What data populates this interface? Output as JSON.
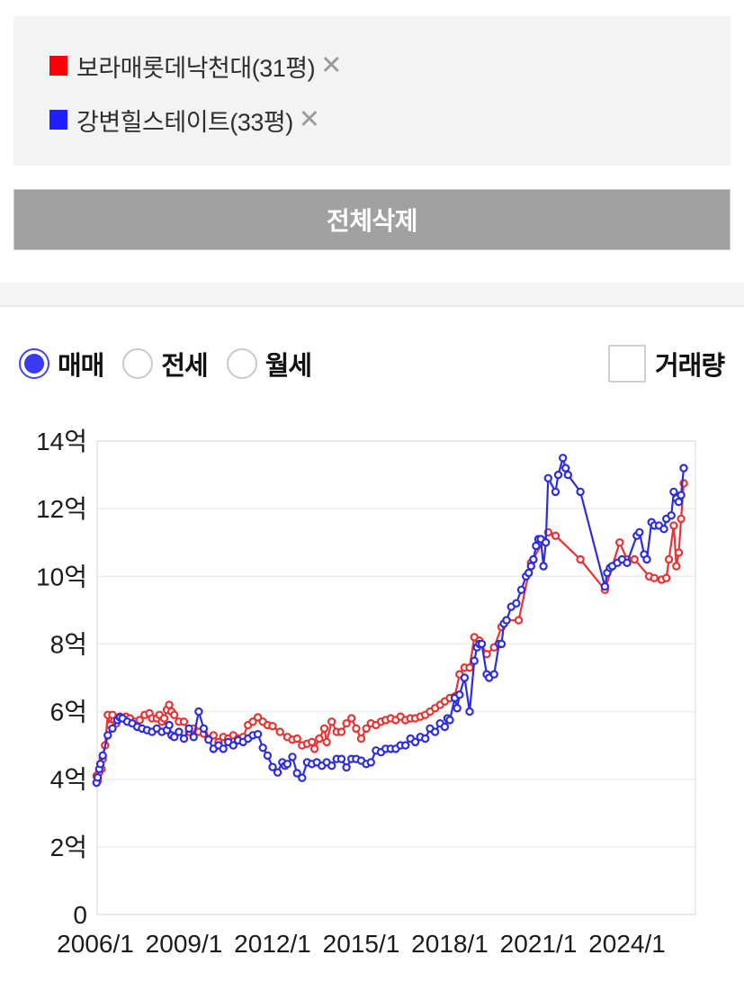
{
  "legend": {
    "items": [
      {
        "label": "보라매롯데낙천대(31평)",
        "color": "#fb0009",
        "close_label": "✕"
      },
      {
        "label": "강변힐스테이트(33평)",
        "color": "#1f1fff",
        "close_label": "✕"
      }
    ]
  },
  "delete_all_button": {
    "label": "전체삭제"
  },
  "controls": {
    "radios": [
      {
        "label": "매매",
        "selected": true
      },
      {
        "label": "전세",
        "selected": false
      },
      {
        "label": "월세",
        "selected": false
      }
    ],
    "checkbox": {
      "label": "거래량",
      "checked": false
    }
  },
  "chart_data": {
    "type": "line",
    "title": "",
    "xlabel": "",
    "ylabel": "",
    "y_unit": "억",
    "ylim": [
      0,
      14
    ],
    "y_tick_step": 2,
    "y_ticks": [
      "14억",
      "12억",
      "10억",
      "8억",
      "6억",
      "4억",
      "2억",
      "0"
    ],
    "x_ticks": [
      "2006/1",
      "2009/1",
      "2012/1",
      "2015/1",
      "2018/1",
      "2021/1",
      "2024/1"
    ],
    "grid": true,
    "legend_position": "top-panel",
    "series": [
      {
        "name": "보라매롯데낙천대(31평)",
        "color": "#e93333",
        "points": [
          [
            2006.04,
            4.1
          ],
          [
            2006.08,
            3.95
          ],
          [
            2006.13,
            4.2
          ],
          [
            2006.17,
            4.45
          ],
          [
            2006.21,
            4.3
          ],
          [
            2006.25,
            4.6
          ],
          [
            2006.33,
            5.0
          ],
          [
            2006.42,
            5.9
          ],
          [
            2006.5,
            5.6
          ],
          [
            2006.58,
            5.9
          ],
          [
            2006.71,
            5.65
          ],
          [
            2006.83,
            5.85
          ],
          [
            2006.92,
            5.8
          ],
          [
            2007.04,
            5.85
          ],
          [
            2007.17,
            5.8
          ],
          [
            2007.33,
            5.7
          ],
          [
            2007.5,
            5.75
          ],
          [
            2007.67,
            5.9
          ],
          [
            2007.83,
            5.95
          ],
          [
            2007.92,
            5.8
          ],
          [
            2008.08,
            5.8
          ],
          [
            2008.17,
            5.9
          ],
          [
            2008.25,
            5.7
          ],
          [
            2008.33,
            5.8
          ],
          [
            2008.42,
            6.05
          ],
          [
            2008.5,
            6.2
          ],
          [
            2008.58,
            6.0
          ],
          [
            2008.67,
            5.9
          ],
          [
            2008.83,
            5.7
          ],
          [
            2009.0,
            5.7
          ],
          [
            2009.17,
            5.4
          ],
          [
            2009.33,
            5.5
          ],
          [
            2009.5,
            5.4
          ],
          [
            2009.67,
            5.35
          ],
          [
            2009.83,
            5.2
          ],
          [
            2010.0,
            5.3
          ],
          [
            2010.17,
            5.1
          ],
          [
            2010.33,
            5.25
          ],
          [
            2010.5,
            5.2
          ],
          [
            2010.67,
            5.3
          ],
          [
            2010.83,
            5.2
          ],
          [
            2011.0,
            5.25
          ],
          [
            2011.17,
            5.6
          ],
          [
            2011.33,
            5.7
          ],
          [
            2011.5,
            5.83
          ],
          [
            2011.67,
            5.7
          ],
          [
            2011.83,
            5.6
          ],
          [
            2012.0,
            5.57
          ],
          [
            2012.25,
            5.4
          ],
          [
            2012.5,
            5.25
          ],
          [
            2012.67,
            5.17
          ],
          [
            2012.83,
            5.2
          ],
          [
            2013.0,
            5.0
          ],
          [
            2013.17,
            5.05
          ],
          [
            2013.33,
            5.1
          ],
          [
            2013.42,
            4.9
          ],
          [
            2013.58,
            5.2
          ],
          [
            2013.75,
            5.5
          ],
          [
            2013.83,
            5.1
          ],
          [
            2014.0,
            5.7
          ],
          [
            2014.17,
            5.4
          ],
          [
            2014.33,
            5.4
          ],
          [
            2014.5,
            5.65
          ],
          [
            2014.67,
            5.8
          ],
          [
            2014.83,
            5.5
          ],
          [
            2015.0,
            5.2
          ],
          [
            2015.17,
            5.5
          ],
          [
            2015.33,
            5.65
          ],
          [
            2015.5,
            5.6
          ],
          [
            2015.67,
            5.7
          ],
          [
            2015.83,
            5.75
          ],
          [
            2016.0,
            5.8
          ],
          [
            2016.17,
            5.75
          ],
          [
            2016.33,
            5.85
          ],
          [
            2016.5,
            5.75
          ],
          [
            2016.67,
            5.8
          ],
          [
            2016.83,
            5.8
          ],
          [
            2017.0,
            5.85
          ],
          [
            2017.17,
            5.9
          ],
          [
            2017.33,
            6.0
          ],
          [
            2017.5,
            6.1
          ],
          [
            2017.67,
            6.2
          ],
          [
            2017.83,
            6.3
          ],
          [
            2018.0,
            6.4
          ],
          [
            2018.17,
            6.45
          ],
          [
            2018.33,
            7.1
          ],
          [
            2018.5,
            7.3
          ],
          [
            2018.67,
            7.3
          ],
          [
            2018.83,
            8.2
          ],
          [
            2019.0,
            8.1
          ],
          [
            2019.25,
            7.7
          ],
          [
            2019.5,
            7.9
          ],
          [
            2019.75,
            8.5
          ],
          [
            2019.92,
            8.7
          ],
          [
            2020.33,
            8.7
          ],
          [
            2020.75,
            10.4
          ],
          [
            2021.33,
            11.3
          ],
          [
            2021.58,
            11.2
          ],
          [
            2022.42,
            10.5
          ],
          [
            2023.25,
            9.6
          ],
          [
            2023.75,
            11.0
          ],
          [
            2024.0,
            10.5
          ],
          [
            2024.25,
            10.5
          ],
          [
            2024.75,
            10.0
          ],
          [
            2024.92,
            9.95
          ],
          [
            2025.17,
            9.9
          ],
          [
            2025.33,
            9.95
          ],
          [
            2025.42,
            10.5
          ],
          [
            2025.58,
            11.5
          ],
          [
            2025.67,
            10.3
          ],
          [
            2025.75,
            10.7
          ],
          [
            2025.83,
            11.7
          ],
          [
            2025.92,
            12.75
          ]
        ]
      },
      {
        "name": "강변힐스테이트(33평)",
        "color": "#2d2de0",
        "points": [
          [
            2006.04,
            3.9
          ],
          [
            2006.08,
            4.05
          ],
          [
            2006.13,
            4.3
          ],
          [
            2006.17,
            4.45
          ],
          [
            2006.25,
            4.7
          ],
          [
            2006.42,
            5.3
          ],
          [
            2006.58,
            5.5
          ],
          [
            2006.75,
            5.75
          ],
          [
            2006.83,
            5.83
          ],
          [
            2006.92,
            5.8
          ],
          [
            2007.08,
            5.7
          ],
          [
            2007.25,
            5.65
          ],
          [
            2007.42,
            5.55
          ],
          [
            2007.58,
            5.5
          ],
          [
            2007.75,
            5.45
          ],
          [
            2007.92,
            5.4
          ],
          [
            2008.08,
            5.5
          ],
          [
            2008.25,
            5.4
          ],
          [
            2008.42,
            5.45
          ],
          [
            2008.5,
            5.6
          ],
          [
            2008.58,
            5.3
          ],
          [
            2008.67,
            5.25
          ],
          [
            2008.83,
            5.4
          ],
          [
            2009.0,
            5.2
          ],
          [
            2009.17,
            5.5
          ],
          [
            2009.33,
            5.25
          ],
          [
            2009.5,
            6.0
          ],
          [
            2009.67,
            5.5
          ],
          [
            2009.83,
            5.17
          ],
          [
            2010.0,
            4.9
          ],
          [
            2010.17,
            5.0
          ],
          [
            2010.33,
            4.9
          ],
          [
            2010.5,
            5.1
          ],
          [
            2010.67,
            5.0
          ],
          [
            2010.83,
            5.15
          ],
          [
            2011.0,
            5.1
          ],
          [
            2011.17,
            5.2
          ],
          [
            2011.33,
            5.3
          ],
          [
            2011.5,
            5.33
          ],
          [
            2011.67,
            4.93
          ],
          [
            2011.83,
            4.7
          ],
          [
            2012.0,
            4.36
          ],
          [
            2012.17,
            4.2
          ],
          [
            2012.33,
            4.5
          ],
          [
            2012.42,
            4.4
          ],
          [
            2012.5,
            4.45
          ],
          [
            2012.67,
            4.66
          ],
          [
            2012.83,
            4.18
          ],
          [
            2013.0,
            4.04
          ],
          [
            2013.17,
            4.5
          ],
          [
            2013.33,
            4.45
          ],
          [
            2013.5,
            4.5
          ],
          [
            2013.67,
            4.4
          ],
          [
            2013.83,
            4.5
          ],
          [
            2014.0,
            4.4
          ],
          [
            2014.17,
            4.6
          ],
          [
            2014.33,
            4.6
          ],
          [
            2014.5,
            4.35
          ],
          [
            2014.67,
            4.6
          ],
          [
            2014.83,
            4.6
          ],
          [
            2015.0,
            4.55
          ],
          [
            2015.17,
            4.45
          ],
          [
            2015.33,
            4.5
          ],
          [
            2015.5,
            4.85
          ],
          [
            2015.67,
            4.8
          ],
          [
            2015.83,
            4.9
          ],
          [
            2016.0,
            4.9
          ],
          [
            2016.17,
            4.9
          ],
          [
            2016.33,
            5.0
          ],
          [
            2016.5,
            5.0
          ],
          [
            2016.67,
            5.2
          ],
          [
            2016.83,
            5.1
          ],
          [
            2017.0,
            5.25
          ],
          [
            2017.17,
            5.2
          ],
          [
            2017.33,
            5.5
          ],
          [
            2017.5,
            5.4
          ],
          [
            2017.67,
            5.65
          ],
          [
            2017.83,
            5.55
          ],
          [
            2017.92,
            5.8
          ],
          [
            2018.0,
            5.75
          ],
          [
            2018.17,
            6.4
          ],
          [
            2018.25,
            6.1
          ],
          [
            2018.33,
            6.5
          ],
          [
            2018.5,
            7.0
          ],
          [
            2018.67,
            6.0
          ],
          [
            2018.83,
            7.5
          ],
          [
            2018.92,
            7.9
          ],
          [
            2019.0,
            8.0
          ],
          [
            2019.08,
            8.0
          ],
          [
            2019.25,
            7.1
          ],
          [
            2019.33,
            7.0
          ],
          [
            2019.5,
            7.1
          ],
          [
            2019.67,
            8.0
          ],
          [
            2019.75,
            8.0
          ],
          [
            2019.83,
            8.6
          ],
          [
            2019.92,
            8.7
          ],
          [
            2020.08,
            9.1
          ],
          [
            2020.25,
            9.2
          ],
          [
            2020.42,
            9.6
          ],
          [
            2020.58,
            10.0
          ],
          [
            2020.67,
            10.1
          ],
          [
            2020.75,
            10.3
          ],
          [
            2020.83,
            10.5
          ],
          [
            2020.92,
            10.9
          ],
          [
            2021.0,
            11.1
          ],
          [
            2021.08,
            11.1
          ],
          [
            2021.17,
            10.3
          ],
          [
            2021.25,
            11.0
          ],
          [
            2021.33,
            12.9
          ],
          [
            2021.58,
            12.5
          ],
          [
            2021.67,
            13.0
          ],
          [
            2021.83,
            13.5
          ],
          [
            2021.92,
            13.2
          ],
          [
            2022.0,
            13.0
          ],
          [
            2022.42,
            12.5
          ],
          [
            2023.25,
            9.7
          ],
          [
            2023.33,
            10.1
          ],
          [
            2023.42,
            10.25
          ],
          [
            2023.5,
            10.3
          ],
          [
            2023.67,
            10.4
          ],
          [
            2023.83,
            10.5
          ],
          [
            2024.0,
            10.4
          ],
          [
            2024.33,
            11.2
          ],
          [
            2024.42,
            11.3
          ],
          [
            2024.58,
            10.65
          ],
          [
            2024.67,
            10.5
          ],
          [
            2024.83,
            11.6
          ],
          [
            2024.92,
            11.5
          ],
          [
            2025.08,
            11.5
          ],
          [
            2025.25,
            11.4
          ],
          [
            2025.33,
            11.7
          ],
          [
            2025.5,
            11.8
          ],
          [
            2025.58,
            12.5
          ],
          [
            2025.67,
            12.3
          ],
          [
            2025.75,
            12.2
          ],
          [
            2025.83,
            12.4
          ],
          [
            2025.92,
            13.2
          ]
        ]
      }
    ]
  }
}
